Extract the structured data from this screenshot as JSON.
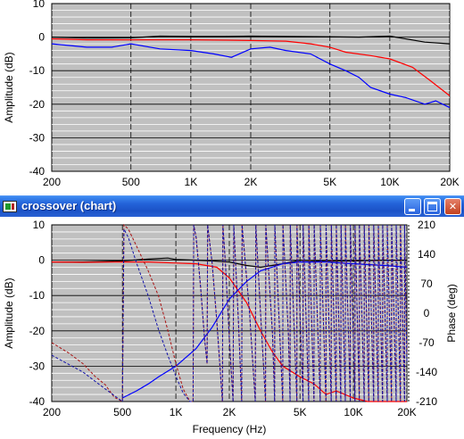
{
  "top_chart": {
    "ylabel": "Amplitude (dB)",
    "y_ticks": [
      "10",
      "0",
      "-10",
      "-20",
      "-30",
      "-40"
    ],
    "x_ticks": [
      "200",
      "500",
      "1K",
      "2K",
      "5K",
      "10K",
      "20K"
    ]
  },
  "window": {
    "title": "crossover (chart)",
    "buttons": {
      "minimize": "minimize",
      "maximize": "maximize",
      "close": "close"
    }
  },
  "bottom_chart": {
    "ylabel": "Amplitude (dB)",
    "y2label": "Phase (deg)",
    "xlabel": "Frequency (Hz)",
    "y_ticks": [
      "10",
      "0",
      "-10",
      "-20",
      "-30",
      "-40"
    ],
    "y2_ticks": [
      "210",
      "140",
      "70",
      "0",
      "-70",
      "-140",
      "-210"
    ],
    "x_ticks": [
      "200",
      "500",
      "1K",
      "2K",
      "5K",
      "10K",
      "20K"
    ]
  },
  "colors": {
    "plot_bg": "#c0c0c0",
    "black": "#000000",
    "red": "#ff0000",
    "blue": "#0000ff",
    "phase_red": "#aa1111",
    "phase_blue": "#1111aa"
  },
  "chart_data": [
    {
      "type": "line",
      "xscale": "log",
      "xlim": [
        200,
        20000
      ],
      "ylim": [
        -40,
        10
      ],
      "ylabel": "Amplitude (dB)",
      "series": [
        {
          "color": "black",
          "x": [
            200,
            300,
            500,
            700,
            1000,
            1500,
            2000,
            3000,
            5000,
            7000,
            10000,
            15000,
            20000
          ],
          "y": [
            0,
            -0.3,
            -0.2,
            0.3,
            0.2,
            0.2,
            0.3,
            0.2,
            0.1,
            0,
            0.3,
            -1.5,
            -2
          ]
        },
        {
          "color": "red",
          "x": [
            200,
            300,
            500,
            700,
            1000,
            1500,
            2000,
            3000,
            4000,
            5000,
            6000,
            8000,
            10000,
            13000,
            16000,
            20000
          ],
          "y": [
            -0.5,
            -0.8,
            -0.8,
            -0.8,
            -0.8,
            -0.9,
            -1,
            -1.2,
            -2,
            -3,
            -4.5,
            -5.5,
            -6.5,
            -9,
            -13,
            -17.5
          ]
        },
        {
          "color": "blue",
          "x": [
            200,
            300,
            400,
            500,
            700,
            1000,
            1300,
            1600,
            2000,
            2500,
            3000,
            4000,
            5000,
            6000,
            7000,
            8000,
            10000,
            12000,
            15000,
            17000,
            20000
          ],
          "y": [
            -2,
            -3,
            -3,
            -2,
            -3.5,
            -4,
            -5,
            -6,
            -3.5,
            -3,
            -4,
            -5,
            -8,
            -10,
            -12,
            -15,
            -17,
            -18,
            -20,
            -19,
            -21
          ]
        }
      ]
    },
    {
      "type": "line",
      "xscale": "log",
      "xlim": [
        200,
        20000
      ],
      "ylim": [
        -40,
        10
      ],
      "y2lim": [
        -210,
        210
      ],
      "xlabel": "Frequency (Hz)",
      "ylabel": "Amplitude (dB)",
      "y2label": "Phase (deg)",
      "series": [
        {
          "color": "black",
          "axis": "y",
          "x": [
            200,
            300,
            500,
            700,
            900,
            1000,
            1300,
            1600,
            2000,
            2500,
            3000,
            4000,
            5000,
            7000,
            10000,
            15000,
            20000
          ],
          "y": [
            -0.5,
            -0.5,
            -0.2,
            0.3,
            0.6,
            0.2,
            0,
            -0.2,
            -0.5,
            -1.5,
            -2,
            -1,
            0,
            -0.3,
            -0.2,
            0,
            0
          ]
        },
        {
          "color": "red",
          "axis": "y",
          "x": [
            200,
            300,
            500,
            700,
            1000,
            1300,
            1700,
            2000,
            2500,
            3000,
            3500,
            4000,
            5000,
            6000,
            7000,
            8000,
            10000,
            12000,
            15000,
            20000
          ],
          "y": [
            -0.5,
            -0.6,
            -0.5,
            -0.5,
            -0.8,
            -1,
            -2,
            -5,
            -12,
            -20,
            -26,
            -30,
            -33,
            -35,
            -38,
            -37,
            -39,
            -40,
            -40,
            -40
          ]
        },
        {
          "color": "blue",
          "axis": "y",
          "x": [
            500,
            600,
            700,
            800,
            1000,
            1300,
            1600,
            2000,
            2500,
            3000,
            4000,
            5000,
            7000,
            10000,
            15000,
            20000
          ],
          "y": [
            -39,
            -37,
            -35,
            -33,
            -30,
            -25,
            -19,
            -11,
            -6,
            -3,
            -1,
            -0.5,
            -0.5,
            -1,
            -1.5,
            -2
          ]
        },
        {
          "color": "phase_red",
          "axis": "y2",
          "dashed": true,
          "x": [
            200,
            250,
            300,
            350,
            400,
            450,
            500,
            510,
            540,
            600,
            700,
            800,
            900,
            1000,
            1100,
            1200,
            1250,
            1260,
            1300,
            1380,
            1450,
            1500,
            1510,
            1600,
            1700,
            1800,
            1830,
            1840,
            1900,
            2000,
            2100,
            2120,
            2250,
            2350,
            2360,
            2600,
            2800,
            2820,
            3000,
            3200,
            3210,
            3500,
            3600,
            3610,
            4000,
            4010,
            4300,
            4400,
            4410,
            4800,
            4810,
            5200,
            5210,
            5600,
            5610,
            6000,
            6010,
            6500,
            6510,
            7000,
            7010,
            7500,
            7510,
            8000,
            8010,
            8500,
            8510,
            9000,
            9010,
            9600,
            9610,
            10200,
            10210,
            10800,
            10810,
            11500,
            11510,
            12200,
            12210,
            13000,
            13010,
            13800,
            13810,
            14600,
            14610,
            15500,
            15510,
            16400,
            16410,
            17400,
            17410,
            18400,
            18410,
            19400,
            19410,
            20000
          ],
          "y": [
            -70,
            -95,
            -120,
            -150,
            -170,
            -200,
            -210,
            210,
            200,
            160,
            100,
            40,
            -40,
            -120,
            -180,
            -210,
            -210,
            210,
            180,
            60,
            -60,
            -120,
            210,
            120,
            -20,
            -170,
            -210,
            210,
            120,
            -60,
            -210,
            210,
            -20,
            -210,
            210,
            0,
            -210,
            210,
            0,
            -210,
            210,
            -50,
            -210,
            210,
            -210,
            210,
            -50,
            -210,
            210,
            -210,
            210,
            -210,
            210,
            -210,
            210,
            -210,
            210,
            -210,
            210,
            -210,
            210,
            -210,
            210,
            -210,
            210,
            -210,
            210,
            -210,
            210,
            -210,
            210,
            -210,
            210,
            -210,
            210,
            -210,
            210,
            -210,
            210,
            -210,
            210,
            -210,
            210,
            -210,
            210,
            -210,
            210,
            -210,
            210,
            -210,
            210,
            -210,
            210,
            -210,
            210,
            -100
          ]
        },
        {
          "color": "phase_blue",
          "axis": "y2",
          "dashed": true,
          "x": [
            200,
            300,
            400,
            500,
            510,
            540,
            600,
            700,
            800,
            900,
            1000,
            1100,
            1200,
            1250,
            1260,
            1300,
            1380,
            1450,
            1500,
            1510,
            1600,
            1700,
            1800,
            1830,
            1840,
            1900,
            2000,
            2100,
            2120,
            2250,
            2350,
            2360,
            2600,
            2800,
            2820,
            3000,
            3200,
            3210,
            3500,
            3600,
            3610,
            4000,
            4010,
            4300,
            4400,
            4410,
            4800,
            4810,
            5200,
            5210,
            5600,
            5610,
            6000,
            6010,
            6500,
            6510,
            7000,
            7010,
            7500,
            7510,
            8000,
            8010,
            8500,
            8510,
            9000,
            9010,
            9600,
            9610,
            10200,
            10210,
            10800,
            10810,
            11500,
            11510,
            12200,
            12210,
            13000,
            13010,
            13800,
            13810,
            14600,
            14610,
            15500,
            15510,
            16400,
            16410,
            17400,
            17410,
            18400,
            18410,
            19400,
            19410,
            20000
          ],
          "y": [
            -100,
            -140,
            -180,
            -210,
            200,
            180,
            120,
            40,
            -40,
            -100,
            -150,
            -190,
            -210,
            -210,
            210,
            180,
            60,
            -60,
            -120,
            210,
            120,
            -20,
            -170,
            -210,
            210,
            120,
            -60,
            -210,
            210,
            -20,
            -210,
            210,
            0,
            -210,
            210,
            0,
            -210,
            210,
            -50,
            -210,
            210,
            -210,
            210,
            -50,
            -210,
            210,
            -210,
            210,
            -210,
            210,
            -210,
            210,
            -210,
            210,
            -210,
            210,
            -210,
            210,
            -210,
            210,
            -210,
            210,
            -210,
            210,
            -210,
            210,
            -210,
            210,
            -210,
            210,
            -210,
            210,
            -210,
            210,
            -210,
            210,
            -210,
            210,
            -210,
            210,
            -210,
            210,
            -210,
            210,
            -210,
            210,
            -210,
            210,
            -210,
            210,
            -210,
            210,
            -120
          ]
        }
      ]
    }
  ]
}
